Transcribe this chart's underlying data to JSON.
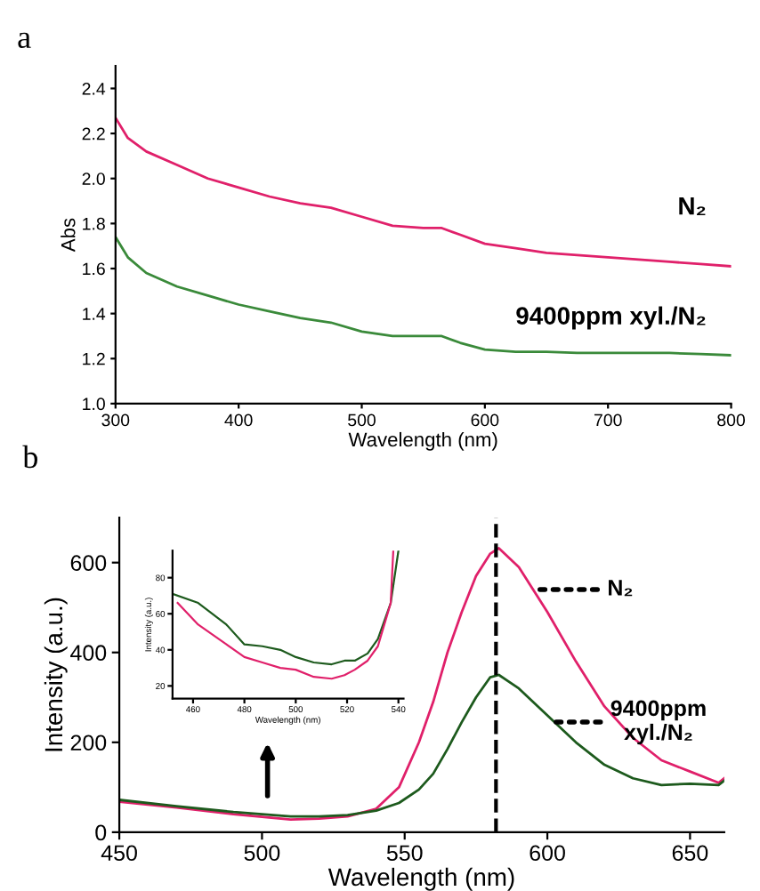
{
  "chart_data": [
    {
      "type": "line",
      "title": "a",
      "xlabel": "Wavelength (nm)",
      "ylabel": "Abs",
      "xlim": [
        300,
        800
      ],
      "ylim": [
        1.0,
        2.5
      ],
      "xticks": [
        300,
        400,
        500,
        600,
        700,
        800
      ],
      "yticks": [
        {
          "value": 1.0,
          "label": "1.0"
        },
        {
          "value": 1.2,
          "label": "1.2"
        },
        {
          "value": 1.4,
          "label": "1.4"
        },
        {
          "value": 1.6,
          "label": "1.6"
        },
        {
          "value": 1.8,
          "label": "1.8"
        },
        {
          "value": 2.0,
          "label": "2.0"
        },
        {
          "value": 2.2,
          "label": "2.2"
        },
        {
          "value": 2.4,
          "label": "2.4"
        }
      ],
      "x": [
        300,
        310,
        325,
        350,
        375,
        400,
        425,
        450,
        475,
        500,
        525,
        550,
        565,
        580,
        600,
        625,
        650,
        675,
        700,
        725,
        750,
        775,
        800
      ],
      "series": [
        {
          "color": "#e0206a",
          "values": [
            2.27,
            2.18,
            2.12,
            2.06,
            2.0,
            1.96,
            1.92,
            1.89,
            1.87,
            1.83,
            1.79,
            1.78,
            1.78,
            1.75,
            1.71,
            1.69,
            1.67,
            1.66,
            1.65,
            1.64,
            1.63,
            1.62,
            1.61
          ]
        },
        {
          "color": "#3a8a3a",
          "values": [
            1.74,
            1.65,
            1.58,
            1.52,
            1.48,
            1.44,
            1.41,
            1.38,
            1.36,
            1.32,
            1.3,
            1.3,
            1.3,
            1.27,
            1.24,
            1.23,
            1.23,
            1.225,
            1.225,
            1.225,
            1.225,
            1.22,
            1.215
          ]
        }
      ],
      "annotations": [
        {
          "text": "N₂",
          "x": 780,
          "y": 1.62
        },
        {
          "text": "9400ppm xyl./N₂",
          "x": 780,
          "y": 1.22
        }
      ]
    },
    {
      "type": "line",
      "title": "b",
      "xlabel": "Wavelength (nm)",
      "ylabel": "Intensity (a.u.)",
      "xlim": [
        450,
        662
      ],
      "ylim": [
        0,
        700
      ],
      "xticks": [
        450,
        500,
        550,
        600,
        650
      ],
      "yticks": [
        0,
        200,
        400,
        600
      ],
      "x": [
        450,
        470,
        490,
        510,
        520,
        530,
        540,
        548,
        555,
        560,
        565,
        570,
        575,
        580,
        583,
        590,
        600,
        610,
        620,
        630,
        640,
        650,
        660,
        662
      ],
      "series": [
        {
          "color": "#e0206a",
          "values": [
            68,
            55,
            40,
            28,
            30,
            35,
            52,
            100,
            200,
            290,
            400,
            490,
            570,
            620,
            632,
            590,
            490,
            380,
            280,
            210,
            160,
            135,
            110,
            120
          ]
        },
        {
          "color": "#1d5a1d",
          "values": [
            72,
            58,
            45,
            35,
            35,
            38,
            48,
            65,
            95,
            130,
            185,
            245,
            300,
            345,
            350,
            320,
            260,
            200,
            150,
            120,
            105,
            108,
            105,
            115
          ]
        }
      ],
      "ref_lines": [
        {
          "axis": "x",
          "value": 582,
          "color": "#000000",
          "line_style": "dashed"
        }
      ],
      "annotations": [
        {
          "text": "N₂",
          "x": 595,
          "y": 540
        },
        {
          "text": "9400ppm\nxyl./N₂",
          "x": 603,
          "y": 245
        }
      ]
    },
    {
      "type": "line",
      "xlabel": "Wavelength (nm)",
      "ylabel": "Intensity (a.u.)",
      "xlim": [
        452,
        542
      ],
      "ylim": [
        13,
        95
      ],
      "xticks": [
        460,
        480,
        500,
        520,
        540
      ],
      "yticks": [
        20,
        40,
        60,
        80
      ],
      "series": [
        {
          "color": "#1d5a1d",
          "x": [
            452,
            462,
            473,
            480,
            487,
            494,
            500,
            507,
            514,
            519,
            523,
            528,
            532,
            537,
            540
          ],
          "values": [
            71,
            66,
            54,
            43,
            42,
            40,
            36,
            33,
            32,
            34,
            34,
            38,
            46,
            66,
            95
          ]
        },
        {
          "color": "#e0206a",
          "x": [
            454,
            462,
            473,
            480,
            487,
            494,
            500,
            507,
            514,
            519,
            523,
            528,
            532,
            537,
            538
          ],
          "values": [
            66,
            54,
            43,
            36,
            33,
            30,
            29,
            25,
            24,
            26,
            29,
            34,
            42,
            66,
            95
          ]
        }
      ]
    }
  ]
}
